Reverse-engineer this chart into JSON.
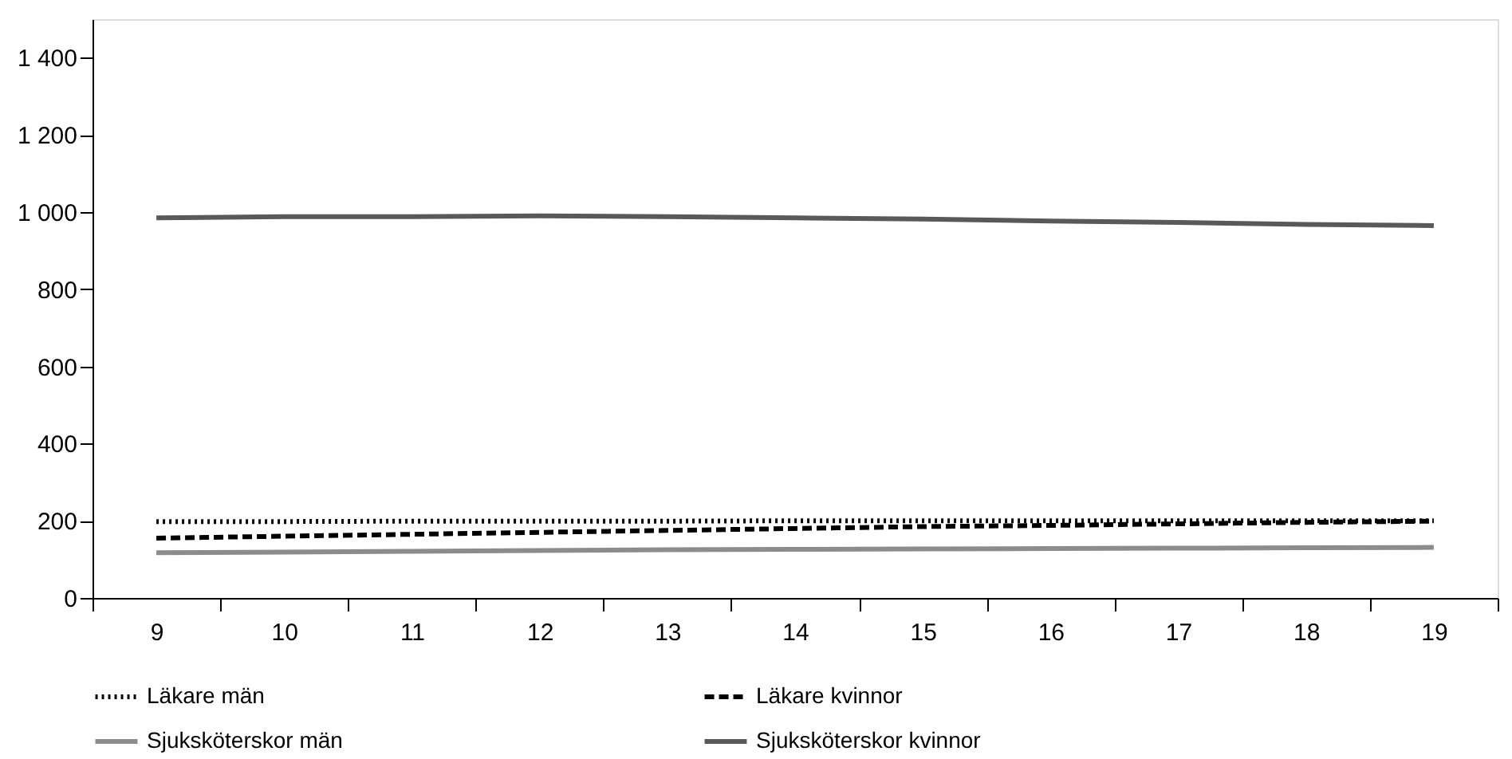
{
  "chart_data": {
    "type": "line",
    "categories": [
      "9",
      "10",
      "11",
      "12",
      "13",
      "14",
      "15",
      "16",
      "17",
      "18",
      "19"
    ],
    "series": [
      {
        "name": "Läkare män",
        "color": "#000000",
        "line_style": "dotted",
        "values": [
          198,
          198,
          199,
          199,
          199,
          200,
          200,
          200,
          200,
          200,
          200
        ]
      },
      {
        "name": "Läkare kvinnor",
        "color": "#000000",
        "line_style": "dashed",
        "values": [
          155,
          160,
          165,
          170,
          175,
          180,
          185,
          188,
          192,
          196,
          199
        ]
      },
      {
        "name": "Sjuksköterskor män",
        "color": "#8c8c8c",
        "line_style": "solid",
        "values": [
          117,
          119,
          121,
          123,
          125,
          126,
          127,
          128,
          129,
          130,
          131
        ]
      },
      {
        "name": "Sjuksköterskor kvinnor",
        "color": "#595959",
        "line_style": "solid",
        "values": [
          985,
          988,
          988,
          990,
          988,
          985,
          982,
          977,
          973,
          968,
          965
        ]
      }
    ],
    "ylim": [
      0,
      1500
    ],
    "yticks": [
      0,
      200,
      400,
      600,
      800,
      {
        "value": 1000,
        "label": "1 000"
      },
      {
        "value": 1200,
        "label": "1 200"
      },
      {
        "value": 1400,
        "label": "1 400"
      }
    ],
    "grid": false,
    "legend": "bottom",
    "marker": "none"
  }
}
